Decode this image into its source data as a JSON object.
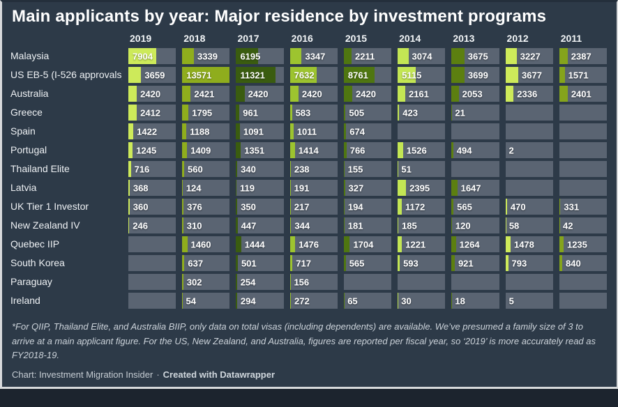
{
  "chart_data": {
    "type": "table",
    "title": "Main applicants by year: Major residence by investment programs",
    "categories": [
      "2019",
      "2018",
      "2017",
      "2016",
      "2015",
      "2014",
      "2013",
      "2012",
      "2011"
    ],
    "series": [
      {
        "name": "Malaysia",
        "values": [
          7904,
          3339,
          6195,
          3347,
          2211,
          3074,
          3675,
          3227,
          2387
        ]
      },
      {
        "name": "US EB-5 (I-526 approvals)",
        "values": [
          3659,
          13571,
          11321,
          7632,
          8761,
          5115,
          3699,
          3677,
          1571
        ]
      },
      {
        "name": "Australia",
        "values": [
          2420,
          2421,
          2420,
          2420,
          2420,
          2161,
          2053,
          2336,
          2401
        ]
      },
      {
        "name": "Greece",
        "values": [
          2412,
          1795,
          961,
          583,
          505,
          423,
          21,
          null,
          null
        ]
      },
      {
        "name": "Spain",
        "values": [
          1422,
          1188,
          1091,
          1011,
          674,
          null,
          null,
          null,
          null
        ]
      },
      {
        "name": "Portugal",
        "values": [
          1245,
          1409,
          1351,
          1414,
          766,
          1526,
          494,
          2,
          null
        ]
      },
      {
        "name": "Thailand Elite",
        "values": [
          716,
          560,
          340,
          238,
          155,
          51,
          null,
          null,
          null
        ]
      },
      {
        "name": "Latvia",
        "values": [
          368,
          124,
          119,
          191,
          327,
          2395,
          1647,
          null,
          null
        ]
      },
      {
        "name": "UK Tier 1 Investor",
        "values": [
          360,
          376,
          350,
          217,
          194,
          1172,
          565,
          470,
          331
        ]
      },
      {
        "name": "New Zealand IV",
        "values": [
          246,
          310,
          447,
          344,
          181,
          185,
          120,
          58,
          42
        ]
      },
      {
        "name": "Quebec IIP",
        "values": [
          null,
          1460,
          1444,
          1476,
          1704,
          1221,
          1264,
          1478,
          1235
        ]
      },
      {
        "name": "South Korea",
        "values": [
          null,
          637,
          501,
          717,
          565,
          593,
          921,
          793,
          840
        ]
      },
      {
        "name": "Paraguay",
        "values": [
          null,
          302,
          254,
          156,
          null,
          null,
          null,
          null,
          null
        ]
      },
      {
        "name": "Ireland",
        "values": [
          null,
          54,
          294,
          272,
          65,
          30,
          18,
          5,
          null
        ]
      }
    ],
    "bar_scale_max": 13571,
    "column_bar_colors": [
      "#cdea5a",
      "#8fad1d",
      "#3a5c10",
      "#9dc42f",
      "#4f7611",
      "#c3e654",
      "#5c7f10",
      "#cdea5a",
      "#85a41c"
    ],
    "legend_position": "none",
    "grid": "off"
  },
  "footnote": "*For QIIP, Thailand Elite, and Australia BIIP, only data on total visas (including dependents) are available. We’ve presumed a family size of 3 to arrive at a main applicant figure. For the US, New Zealand, and Australia, figures are reported per fiscal year, so ‘2019’ is more accurately read as FY2018-19.",
  "credit": {
    "source": "Chart: Investment Migration Insider",
    "separator": "·",
    "tool": "Created with Datawrapper"
  },
  "colors": {
    "background": "#2d3a48",
    "cell_track": "#5a6472",
    "title_text": "#ffffff",
    "value_text": "#ffffff",
    "footnote_text": "#ccd3da",
    "credit_text": "#c5ccd3",
    "frame_border": "#d8dadc"
  }
}
